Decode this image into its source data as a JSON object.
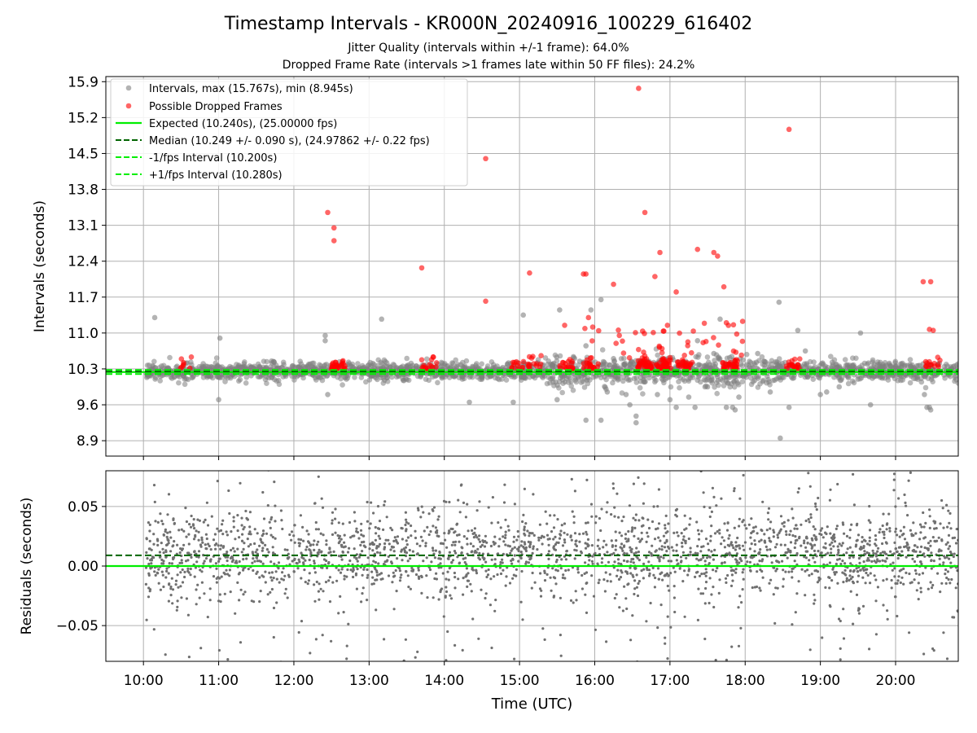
{
  "title": "Timestamp Intervals - KR000N_20240916_100229_616402",
  "subtitle_1": "Jitter Quality (intervals within +/-1 frame): 64.0%",
  "subtitle_2": "Dropped Frame Rate (intervals >1 frames late within 50 FF files): 24.2%",
  "colors": {
    "intervals": "#808080",
    "dropped": "#ff0000",
    "expected": "#00ee00",
    "median": "#006400",
    "bound": "#00ee00",
    "grid": "#b0b0b0"
  },
  "chart_data": [
    {
      "type": "scatter",
      "ylabel": "Intervals (seconds)",
      "ylim": [
        8.6,
        16.0
      ],
      "yticks": [
        "8.9",
        "9.6",
        "10.3",
        "11.0",
        "11.7",
        "12.4",
        "13.1",
        "13.8",
        "14.5",
        "15.2",
        "15.9"
      ],
      "ytick_values": [
        8.9,
        9.6,
        10.3,
        11.0,
        11.7,
        12.4,
        13.1,
        13.8,
        14.5,
        15.2,
        15.9
      ],
      "xlim": [
        "09:30",
        "20:50"
      ],
      "grid": true,
      "legend_position": "top-left",
      "legend": [
        "Intervals, max (15.767s), min (8.945s)",
        "Possible Dropped Frames",
        "Expected (10.240s), (25.00000 fps)",
        "Median (10.249 +/- 0.090 s), (24.97862 +/- 0.22 fps)",
        "-1/fps Interval (10.200s)",
        "+1/fps Interval (10.280s)"
      ],
      "reference_lines": [
        {
          "name": "Expected",
          "value": 10.24
        },
        {
          "name": "Median",
          "value": 10.249
        },
        {
          "name": "-1/fps Interval",
          "value": 10.2
        },
        {
          "name": "+1/fps Interval",
          "value": 10.28
        }
      ],
      "series": [
        {
          "name": "Intervals",
          "description": "dense band of ~2000 points between 9.9 and 10.6 s across 10:02–20:50; points below list outliers",
          "points": [
            [
              "10:09",
              11.3
            ],
            [
              "11:00",
              9.7
            ],
            [
              "11:01",
              10.9
            ],
            [
              "12:25",
              10.95
            ],
            [
              "12:25",
              10.85
            ],
            [
              "12:27",
              9.8
            ],
            [
              "13:10",
              11.27
            ],
            [
              "14:20",
              9.65
            ],
            [
              "14:55",
              9.65
            ],
            [
              "15:03",
              11.35
            ],
            [
              "15:30",
              9.7
            ],
            [
              "15:32",
              11.45
            ],
            [
              "15:48",
              10.45
            ],
            [
              "15:53",
              10.75
            ],
            [
              "15:53",
              9.3
            ],
            [
              "15:57",
              11.45
            ],
            [
              "16:05",
              11.65
            ],
            [
              "16:05",
              9.3
            ],
            [
              "16:10",
              9.85
            ],
            [
              "16:15",
              10.5
            ],
            [
              "16:25",
              9.8
            ],
            [
              "16:28",
              9.6
            ],
            [
              "16:33",
              9.25
            ],
            [
              "16:33",
              9.38
            ],
            [
              "16:39",
              10.05
            ],
            [
              "16:50",
              9.8
            ],
            [
              "17:00",
              10.3
            ],
            [
              "17:00",
              9.7
            ],
            [
              "17:05",
              9.55
            ],
            [
              "17:15",
              9.75
            ],
            [
              "17:20",
              9.55
            ],
            [
              "17:22",
              10.85
            ],
            [
              "17:30",
              9.95
            ],
            [
              "17:35",
              10.6
            ],
            [
              "17:40",
              11.27
            ],
            [
              "17:45",
              9.55
            ],
            [
              "17:50",
              9.55
            ],
            [
              "17:52",
              9.5
            ],
            [
              "17:55",
              9.75
            ],
            [
              "18:10",
              10.6
            ],
            [
              "18:20",
              9.85
            ],
            [
              "18:27",
              11.6
            ],
            [
              "18:28",
              8.95
            ],
            [
              "18:35",
              9.55
            ],
            [
              "18:42",
              11.05
            ],
            [
              "18:48",
              10.65
            ],
            [
              "19:00",
              9.8
            ],
            [
              "19:05",
              9.85
            ],
            [
              "19:15",
              9.95
            ],
            [
              "19:30",
              10.1
            ],
            [
              "19:32",
              11.0
            ],
            [
              "19:40",
              9.6
            ],
            [
              "20:15",
              10.2
            ],
            [
              "20:22",
              10.4
            ],
            [
              "20:23",
              9.8
            ],
            [
              "20:25",
              9.55
            ],
            [
              "20:27",
              9.55
            ],
            [
              "20:28",
              9.5
            ]
          ]
        },
        {
          "name": "Possible Dropped Frames",
          "description": "clusters at ~10.3–10.5 s near 10:35, 12:35, 13:48, 14:58, 15:12, 15:38, 15:57, 16:35–17:15, 17:48, 18:38, 20:30; points below list outliers",
          "points": [
            [
              "12:27",
              13.35
            ],
            [
              "12:32",
              13.05
            ],
            [
              "12:32",
              12.8
            ],
            [
              "13:42",
              12.27
            ],
            [
              "14:33",
              14.4
            ],
            [
              "14:33",
              11.62
            ],
            [
              "15:08",
              12.17
            ],
            [
              "15:36",
              11.15
            ],
            [
              "15:51",
              12.15
            ],
            [
              "15:53",
              12.15
            ],
            [
              "15:55",
              11.3
            ],
            [
              "16:15",
              11.95
            ],
            [
              "16:35",
              15.77
            ],
            [
              "16:40",
              13.35
            ],
            [
              "16:48",
              12.1
            ],
            [
              "16:52",
              12.57
            ],
            [
              "16:58",
              11.15
            ],
            [
              "17:05",
              11.8
            ],
            [
              "17:22",
              12.63
            ],
            [
              "17:35",
              12.57
            ],
            [
              "17:38",
              12.5
            ],
            [
              "17:43",
              11.9
            ],
            [
              "17:45",
              11.2
            ],
            [
              "18:35",
              14.97
            ],
            [
              "20:22",
              12.0
            ],
            [
              "20:28",
              12.0
            ],
            [
              "20:27",
              11.07
            ],
            [
              "20:30",
              11.05
            ]
          ]
        }
      ]
    },
    {
      "type": "scatter",
      "xlabel": "Time (UTC)",
      "ylabel": "Residuals (seconds)",
      "ylim": [
        -0.08,
        0.08
      ],
      "yticks": [
        "−0.05",
        "0.00",
        "0.05"
      ],
      "ytick_values": [
        -0.05,
        0.0,
        0.05
      ],
      "xticks": [
        "10:00",
        "11:00",
        "12:00",
        "13:00",
        "14:00",
        "15:00",
        "16:00",
        "17:00",
        "18:00",
        "19:00",
        "20:00"
      ],
      "xlim": [
        "09:30",
        "20:50"
      ],
      "grid": true,
      "reference_lines": [
        {
          "name": "Expected",
          "value": 0.0
        },
        {
          "name": "Median",
          "value": 0.009
        }
      ],
      "series": [
        {
          "name": "Residuals",
          "description": "~2500 small grey points spread between −0.08 and 0.08 s, densest between −0.01 and 0.03 s, from 10:02 to 20:50"
        }
      ]
    }
  ]
}
